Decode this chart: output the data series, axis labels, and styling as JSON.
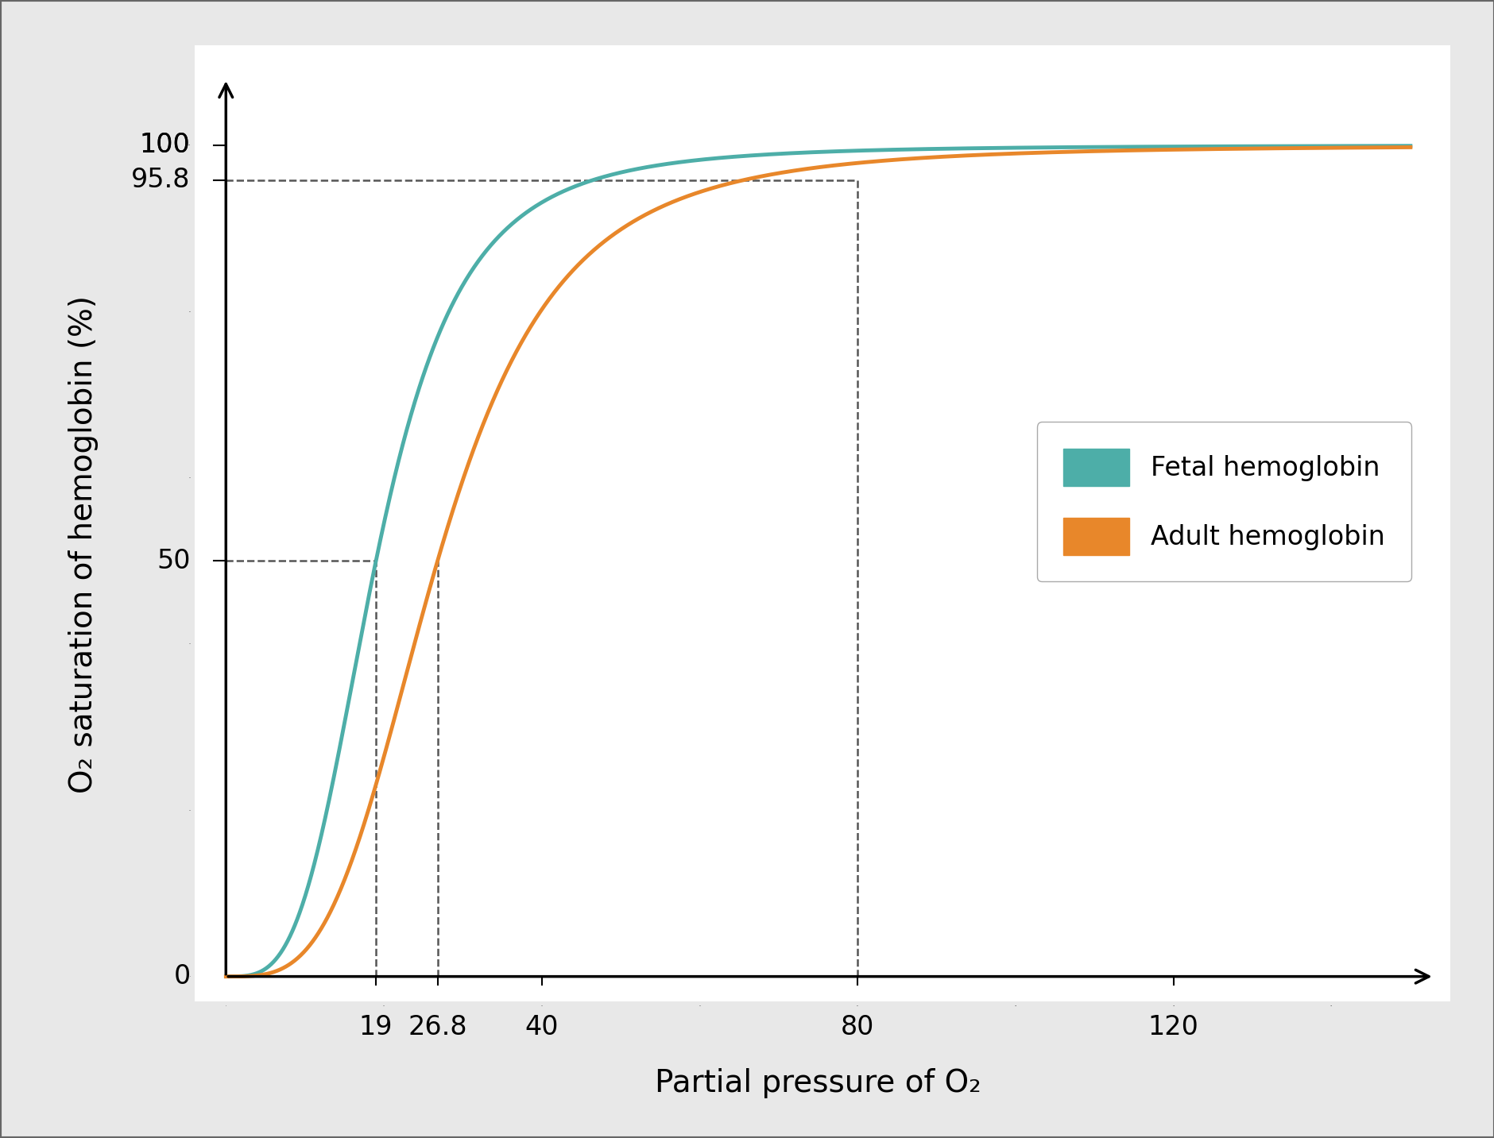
{
  "fetal_color": "#4DAEA8",
  "adult_color": "#E8872A",
  "figure_bg_color": "#e8e8e8",
  "plot_bg_color": "#ffffff",
  "xlabel": "Partial pressure of O₂",
  "ylabel": "O₂ saturation of hemoglobin (%)",
  "xlim": [
    -3,
    155
  ],
  "ylim": [
    -2,
    110
  ],
  "plot_xlim": [
    0,
    150
  ],
  "plot_ylim": [
    0,
    102
  ],
  "xticks": [
    19,
    26.8,
    40,
    80,
    120
  ],
  "xtick_labels": [
    "19",
    "26.8",
    "40",
    "80",
    "120"
  ],
  "yticks": [
    50,
    95.8,
    100
  ],
  "ytick_labels": [
    "50",
    "95.8",
    "100"
  ],
  "fetal_p50": 19,
  "adult_p50": 26.8,
  "ref_x": 80,
  "ref_y": 95.8,
  "fetal_n": 3.5,
  "adult_n": 3.5,
  "fetal_label": "Fetal hemoglobin",
  "adult_label": "Adult hemoglobin",
  "line_width": 3.5,
  "dashed_line_color": "#555555",
  "legend_box_color_fetal": "#4DAEA8",
  "legend_box_color_adult": "#E8872A",
  "origin_label": "0",
  "zero_y_label": "0"
}
